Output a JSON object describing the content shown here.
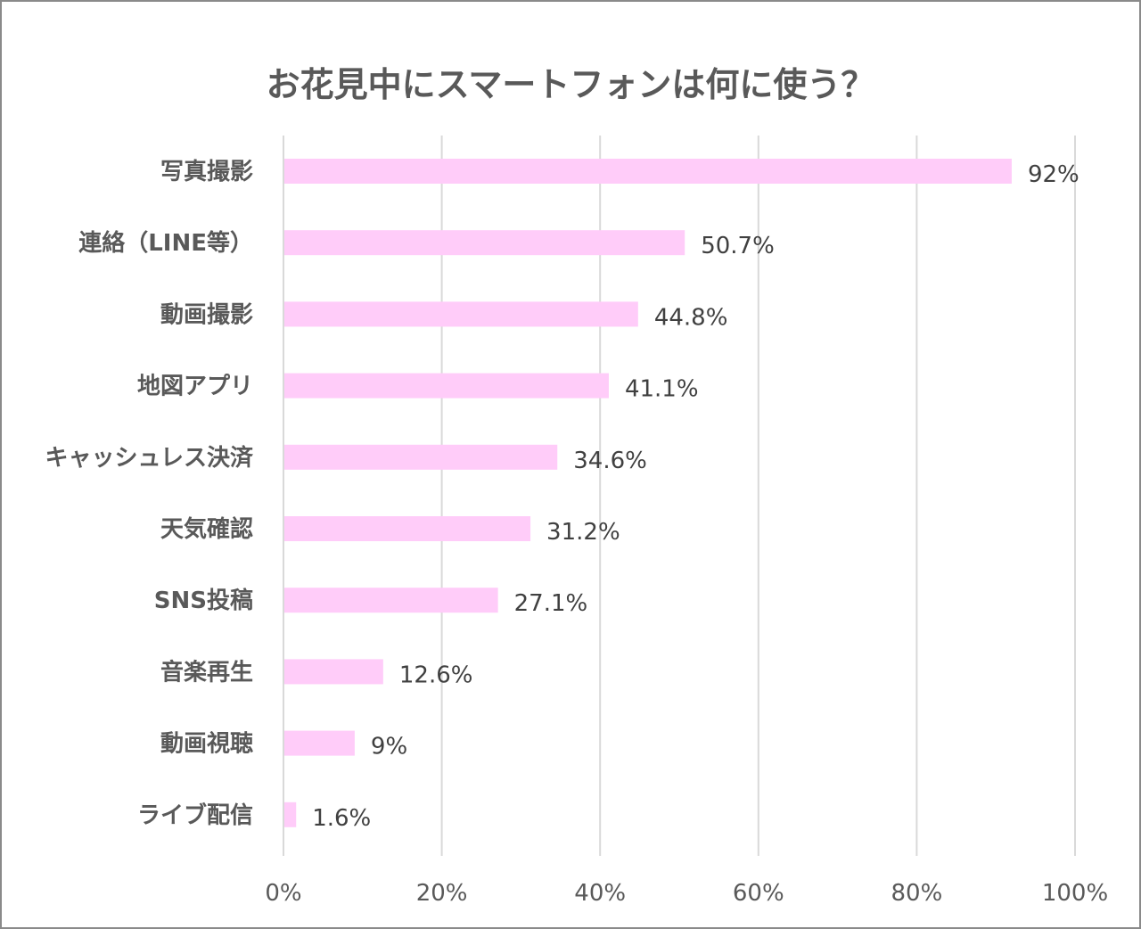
{
  "chart_data": {
    "type": "bar",
    "orientation": "horizontal",
    "title": "お花見中にスマートフォンは何に使う？",
    "categories": [
      "写真撮影",
      "連絡（LINE等）",
      "動画撮影",
      "地図アプリ",
      "キャッシュレス決済",
      "天気確認",
      "SNS投稿",
      "音楽再生",
      "動画視聴",
      "ライブ配信"
    ],
    "values": [
      92,
      50.7,
      44.8,
      41.1,
      34.6,
      31.2,
      27.1,
      12.6,
      9,
      1.6
    ],
    "data_labels": [
      "92%",
      "50.7%",
      "44.8%",
      "41.1%",
      "34.6%",
      "31.2%",
      "27.1%",
      "12.6%",
      "9%",
      "1.6%"
    ],
    "xlim": [
      0,
      100
    ],
    "x_ticks": [
      "0%",
      "20%",
      "40%",
      "60%",
      "80%",
      "100%"
    ],
    "grid": "vertical",
    "bar_color": "#ffccf9",
    "xlabel": "",
    "ylabel": ""
  }
}
